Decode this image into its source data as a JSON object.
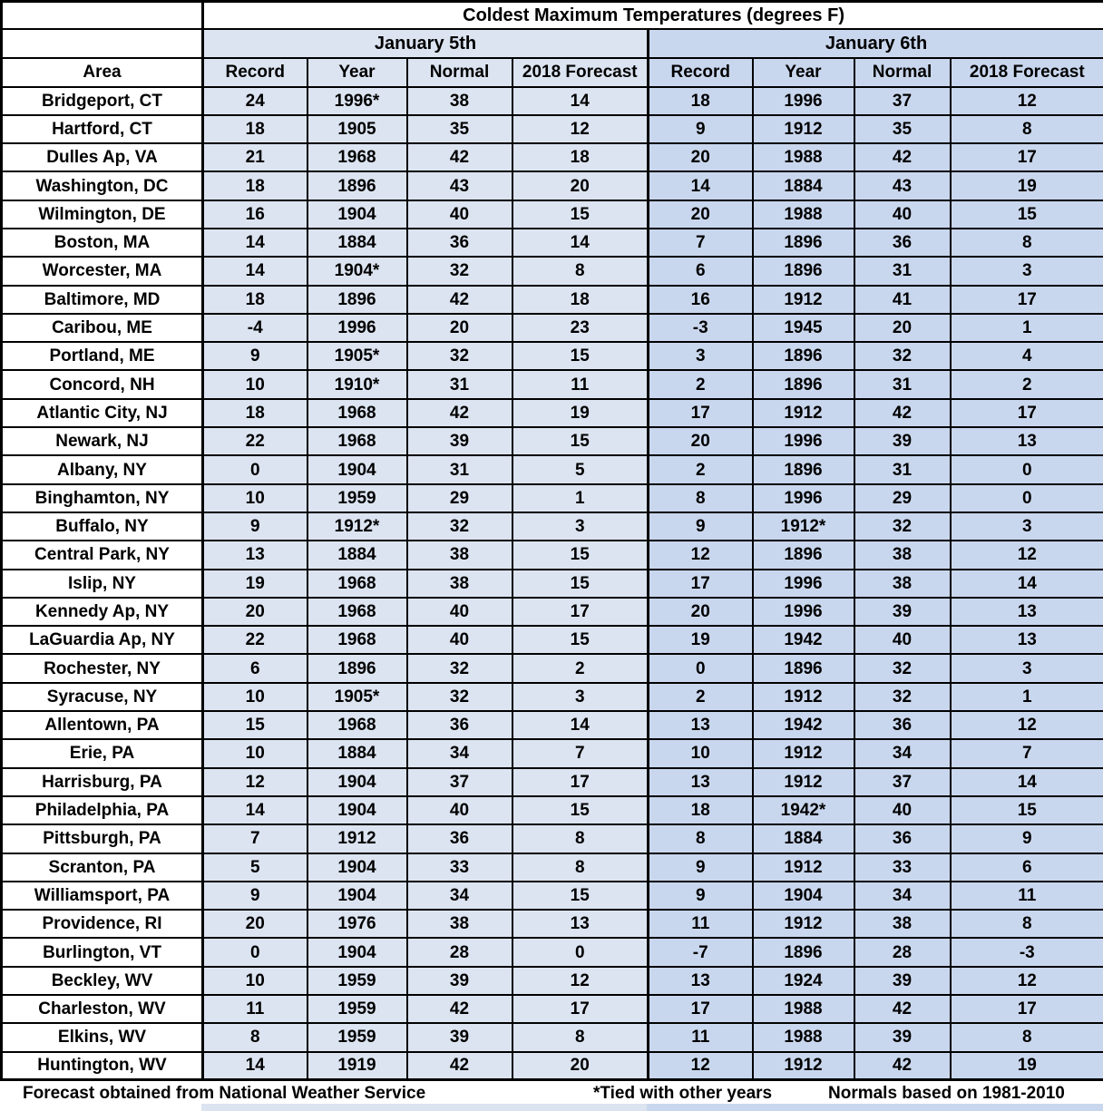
{
  "title": "Coldest Maximum Temperatures (degrees F)",
  "groups": [
    {
      "label": "January 5th"
    },
    {
      "label": "January 6th"
    }
  ],
  "area_header": "Area",
  "sub_headers": [
    "Record",
    "Year",
    "Normal",
    "2018 Forecast",
    "Record",
    "Year",
    "Normal",
    "2018 Forecast"
  ],
  "rows": [
    {
      "area": "Bridgeport, CT",
      "values": [
        "24",
        "1996*",
        "38",
        "14",
        "18",
        "1996",
        "37",
        "12"
      ]
    },
    {
      "area": "Hartford, CT",
      "values": [
        "18",
        "1905",
        "35",
        "12",
        "9",
        "1912",
        "35",
        "8"
      ]
    },
    {
      "area": "Dulles Ap, VA",
      "values": [
        "21",
        "1968",
        "42",
        "18",
        "20",
        "1988",
        "42",
        "17"
      ]
    },
    {
      "area": "Washington, DC",
      "values": [
        "18",
        "1896",
        "43",
        "20",
        "14",
        "1884",
        "43",
        "19"
      ]
    },
    {
      "area": "Wilmington, DE",
      "values": [
        "16",
        "1904",
        "40",
        "15",
        "20",
        "1988",
        "40",
        "15"
      ]
    },
    {
      "area": "Boston, MA",
      "values": [
        "14",
        "1884",
        "36",
        "14",
        "7",
        "1896",
        "36",
        "8"
      ]
    },
    {
      "area": "Worcester, MA",
      "values": [
        "14",
        "1904*",
        "32",
        "8",
        "6",
        "1896",
        "31",
        "3"
      ]
    },
    {
      "area": "Baltimore, MD",
      "values": [
        "18",
        "1896",
        "42",
        "18",
        "16",
        "1912",
        "41",
        "17"
      ]
    },
    {
      "area": "Caribou, ME",
      "values": [
        "-4",
        "1996",
        "20",
        "23",
        "-3",
        "1945",
        "20",
        "1"
      ]
    },
    {
      "area": "Portland, ME",
      "values": [
        "9",
        "1905*",
        "32",
        "15",
        "3",
        "1896",
        "32",
        "4"
      ]
    },
    {
      "area": "Concord, NH",
      "values": [
        "10",
        "1910*",
        "31",
        "11",
        "2",
        "1896",
        "31",
        "2"
      ]
    },
    {
      "area": "Atlantic City, NJ",
      "values": [
        "18",
        "1968",
        "42",
        "19",
        "17",
        "1912",
        "42",
        "17"
      ]
    },
    {
      "area": "Newark, NJ",
      "values": [
        "22",
        "1968",
        "39",
        "15",
        "20",
        "1996",
        "39",
        "13"
      ]
    },
    {
      "area": "Albany, NY",
      "values": [
        "0",
        "1904",
        "31",
        "5",
        "2",
        "1896",
        "31",
        "0"
      ]
    },
    {
      "area": "Binghamton, NY",
      "values": [
        "10",
        "1959",
        "29",
        "1",
        "8",
        "1996",
        "29",
        "0"
      ]
    },
    {
      "area": "Buffalo, NY",
      "values": [
        "9",
        "1912*",
        "32",
        "3",
        "9",
        "1912*",
        "32",
        "3"
      ]
    },
    {
      "area": "Central Park, NY",
      "values": [
        "13",
        "1884",
        "38",
        "15",
        "12",
        "1896",
        "38",
        "12"
      ]
    },
    {
      "area": "Islip, NY",
      "values": [
        "19",
        "1968",
        "38",
        "15",
        "17",
        "1996",
        "38",
        "14"
      ]
    },
    {
      "area": "Kennedy Ap, NY",
      "values": [
        "20",
        "1968",
        "40",
        "17",
        "20",
        "1996",
        "39",
        "13"
      ]
    },
    {
      "area": "LaGuardia Ap, NY",
      "values": [
        "22",
        "1968",
        "40",
        "15",
        "19",
        "1942",
        "40",
        "13"
      ]
    },
    {
      "area": "Rochester, NY",
      "values": [
        "6",
        "1896",
        "32",
        "2",
        "0",
        "1896",
        "32",
        "3"
      ]
    },
    {
      "area": "Syracuse, NY",
      "values": [
        "10",
        "1905*",
        "32",
        "3",
        "2",
        "1912",
        "32",
        "1"
      ]
    },
    {
      "area": "Allentown, PA",
      "values": [
        "15",
        "1968",
        "36",
        "14",
        "13",
        "1942",
        "36",
        "12"
      ]
    },
    {
      "area": "Erie, PA",
      "values": [
        "10",
        "1884",
        "34",
        "7",
        "10",
        "1912",
        "34",
        "7"
      ]
    },
    {
      "area": "Harrisburg, PA",
      "values": [
        "12",
        "1904",
        "37",
        "17",
        "13",
        "1912",
        "37",
        "14"
      ]
    },
    {
      "area": "Philadelphia, PA",
      "values": [
        "14",
        "1904",
        "40",
        "15",
        "18",
        "1942*",
        "40",
        "15"
      ]
    },
    {
      "area": "Pittsburgh, PA",
      "values": [
        "7",
        "1912",
        "36",
        "8",
        "8",
        "1884",
        "36",
        "9"
      ]
    },
    {
      "area": "Scranton, PA",
      "values": [
        "5",
        "1904",
        "33",
        "8",
        "9",
        "1912",
        "33",
        "6"
      ]
    },
    {
      "area": "Williamsport, PA",
      "values": [
        "9",
        "1904",
        "34",
        "15",
        "9",
        "1904",
        "34",
        "11"
      ]
    },
    {
      "area": "Providence, RI",
      "values": [
        "20",
        "1976",
        "38",
        "13",
        "11",
        "1912",
        "38",
        "8"
      ]
    },
    {
      "area": "Burlington, VT",
      "values": [
        "0",
        "1904",
        "28",
        "0",
        "-7",
        "1896",
        "28",
        "-3"
      ]
    },
    {
      "area": "Beckley, WV",
      "values": [
        "10",
        "1959",
        "39",
        "12",
        "13",
        "1924",
        "39",
        "12"
      ]
    },
    {
      "area": "Charleston, WV",
      "values": [
        "11",
        "1959",
        "42",
        "17",
        "17",
        "1988",
        "42",
        "17"
      ]
    },
    {
      "area": "Elkins, WV",
      "values": [
        "8",
        "1959",
        "39",
        "8",
        "11",
        "1988",
        "39",
        "8"
      ]
    },
    {
      "area": "Huntington, WV",
      "values": [
        "14",
        "1919",
        "42",
        "20",
        "12",
        "1912",
        "42",
        "19"
      ]
    }
  ],
  "footnotes": {
    "source": "Forecast obtained from National Weather Service",
    "tied": "*Tied with other years",
    "normals": "Normals based on 1981-2010"
  },
  "colors": {
    "jan5_fill": "#dce4f1",
    "jan6_fill": "#c9d7ee",
    "border": "#000000",
    "background": "#ffffff"
  }
}
